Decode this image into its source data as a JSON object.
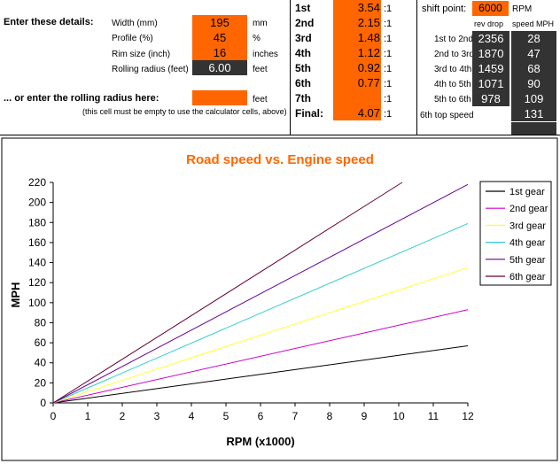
{
  "left": {
    "enter_label": "Enter these details:",
    "fields": [
      {
        "label": "Width (mm)",
        "value": "195",
        "unit": "mm"
      },
      {
        "label": "Profile (%)",
        "value": "45",
        "unit": "%"
      },
      {
        "label": "Rim size (inch)",
        "value": "16",
        "unit": "inches"
      },
      {
        "label": "Rolling radius (feet)",
        "value": "6.00",
        "unit": "feet"
      }
    ],
    "or_label": "... or enter the rolling radius here:",
    "or_unit": "feet",
    "note": "(this cell must be empty to use the calculator cells, above)"
  },
  "gears": {
    "rows": [
      {
        "label": "1st",
        "value": "3.54",
        "suffix": ":1"
      },
      {
        "label": "2nd",
        "value": "2.15",
        "suffix": ":1"
      },
      {
        "label": "3rd",
        "value": "1.48",
        "suffix": ":1"
      },
      {
        "label": "4th",
        "value": "1.12",
        "suffix": ":1"
      },
      {
        "label": "5th",
        "value": "0.92",
        "suffix": ":1"
      },
      {
        "label": "6th",
        "value": "0.77",
        "suffix": ":1"
      },
      {
        "label": "7th",
        "value": "",
        "suffix": ":1"
      },
      {
        "label": "Final:",
        "value": "4.07",
        "suffix": ":1"
      }
    ]
  },
  "shift": {
    "label": "shift point:",
    "value": "6000",
    "unit": "RPM",
    "col_rev": "rev drop",
    "col_speed": "speed MPH",
    "rows": [
      {
        "label": "1st to 2nd",
        "rev": "2356",
        "speed": "28"
      },
      {
        "label": "2nd to 3rd",
        "rev": "1870",
        "speed": "47"
      },
      {
        "label": "3rd to 4th",
        "rev": "1459",
        "speed": "68"
      },
      {
        "label": "4th to 5th",
        "rev": "1071",
        "speed": "90"
      },
      {
        "label": "5th to 6th",
        "rev": "978",
        "speed": "109"
      }
    ],
    "top_label": "6th top speed",
    "top_speed": "131"
  },
  "chart_data": {
    "type": "line",
    "title": "Road speed vs. Engine speed",
    "xlabel": "RPM (x1000)",
    "ylabel": "MPH",
    "xlim": [
      0,
      12
    ],
    "ylim": [
      0,
      220
    ],
    "xticks": [
      "0",
      "1",
      "2",
      "3",
      "4",
      "5",
      "6",
      "7",
      "8",
      "9",
      "10",
      "11",
      "12"
    ],
    "yticks": [
      "0",
      "20",
      "40",
      "60",
      "80",
      "100",
      "120",
      "140",
      "160",
      "180",
      "200",
      "220"
    ],
    "legend_position": "top-right",
    "grid": false,
    "series": [
      {
        "name": "1st gear",
        "color": "#000000",
        "x": [
          0,
          12
        ],
        "y": [
          0,
          57
        ]
      },
      {
        "name": "2nd gear",
        "color": "#cc00cc",
        "x": [
          0,
          12
        ],
        "y": [
          0,
          93
        ]
      },
      {
        "name": "3rd gear",
        "color": "#ffff33",
        "x": [
          0,
          12
        ],
        "y": [
          0,
          135
        ]
      },
      {
        "name": "4th gear",
        "color": "#33cccc",
        "x": [
          0,
          12
        ],
        "y": [
          0,
          179
        ]
      },
      {
        "name": "5th gear",
        "color": "#660099",
        "x": [
          0,
          12
        ],
        "y": [
          0,
          218
        ]
      },
      {
        "name": "6th gear",
        "color": "#660033",
        "x": [
          0,
          10.1
        ],
        "y": [
          0,
          220
        ]
      }
    ]
  }
}
